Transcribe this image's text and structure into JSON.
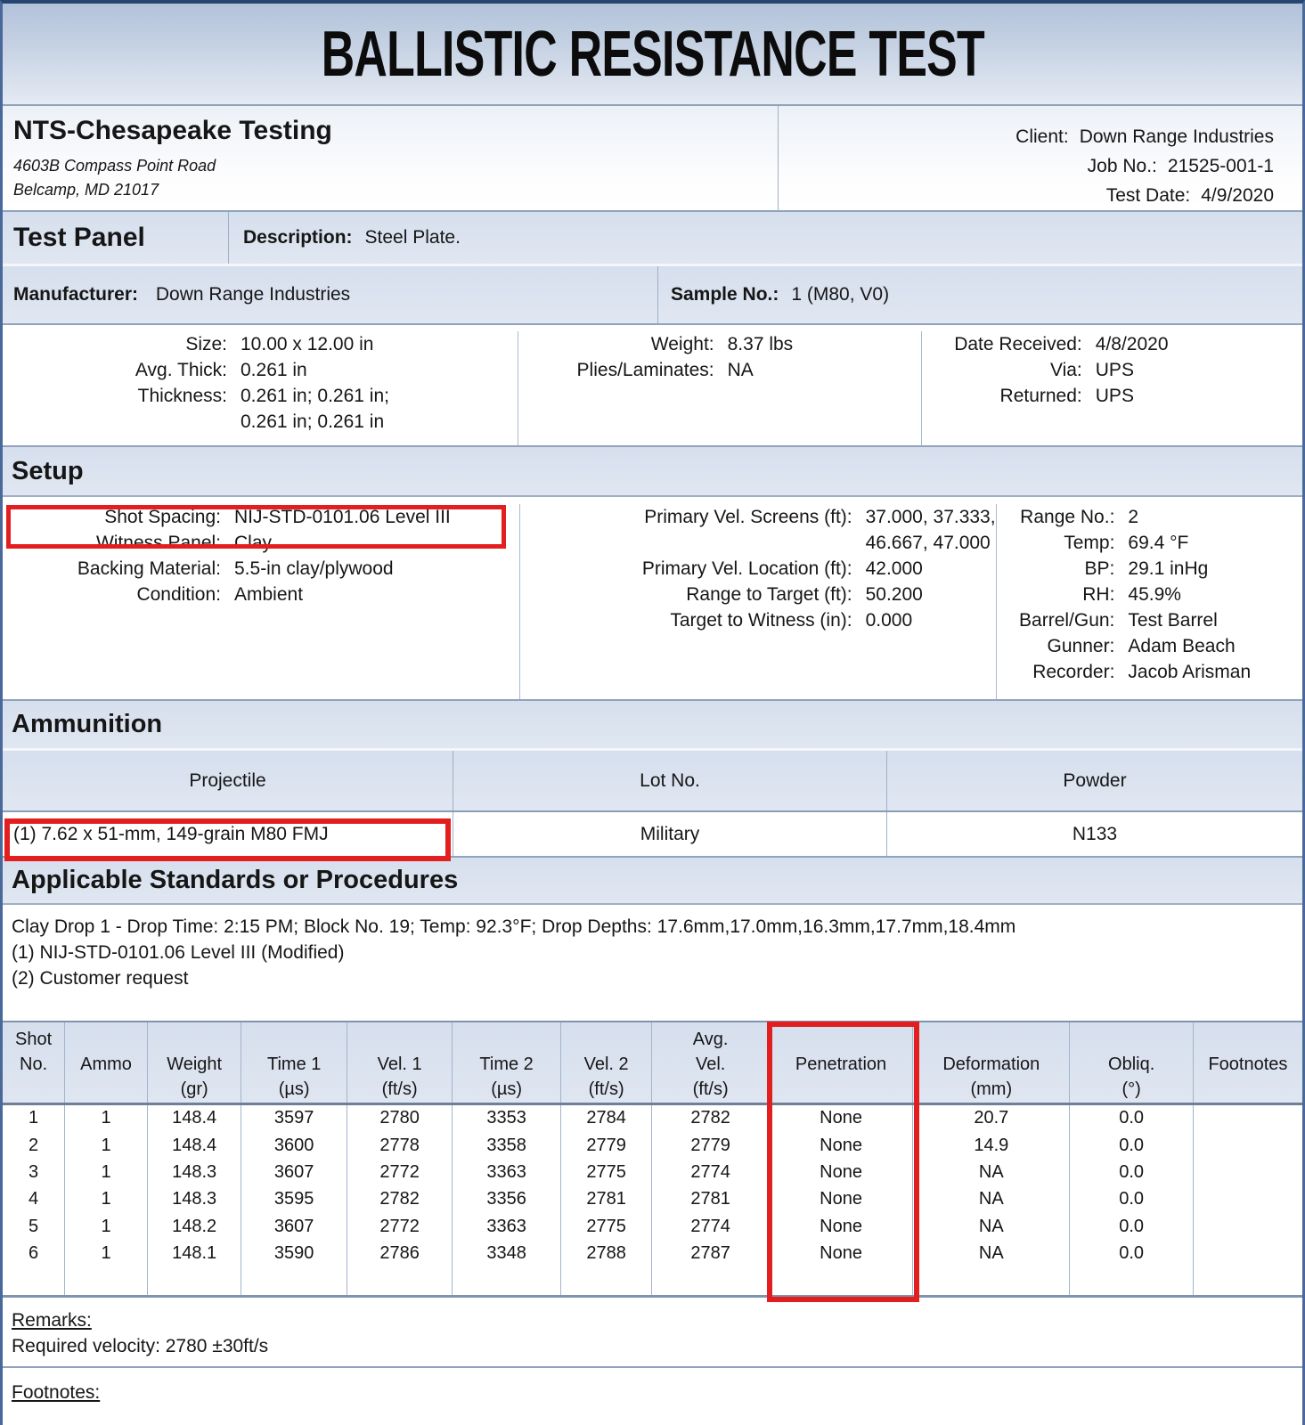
{
  "title": "BALLISTIC RESISTANCE TEST",
  "header": {
    "lab_name": "NTS-Chesapeake Testing",
    "lab_address1": "4603B Compass Point Road",
    "lab_address2": "Belcamp, MD 21017",
    "client_label": "Client:",
    "client": "Down Range Industries",
    "job_label": "Job No.:",
    "job_no": "21525-001-1",
    "test_date_label": "Test Date:",
    "test_date": "4/9/2020"
  },
  "test_panel": {
    "section_title": "Test Panel",
    "description_label": "Description:",
    "description": "Steel Plate.",
    "manufacturer_label": "Manufacturer:",
    "manufacturer": "Down Range Industries",
    "sample_label": "Sample No.:",
    "sample": "1 (M80, V0)",
    "specs_col1": [
      {
        "label": "Size:",
        "value": "10.00 x 12.00 in"
      },
      {
        "label": "Avg. Thick:",
        "value": "0.261 in"
      },
      {
        "label": "Thickness:",
        "value": "0.261 in; 0.261 in;"
      },
      {
        "label": "",
        "value": "0.261 in; 0.261 in"
      }
    ],
    "specs_col2": [
      {
        "label": "Weight:",
        "value": "8.37 lbs"
      },
      {
        "label": "Plies/Laminates:",
        "value": "NA"
      }
    ],
    "specs_col3": [
      {
        "label": "Date Received:",
        "value": "4/8/2020"
      },
      {
        "label": "Via:",
        "value": "UPS"
      },
      {
        "label": "Returned:",
        "value": "UPS"
      }
    ]
  },
  "setup": {
    "section_title": "Setup",
    "col1": [
      {
        "label": "Shot Spacing:",
        "value": "NIJ-STD-0101.06 Level III"
      },
      {
        "label": "Witness Panel:",
        "value": "Clay"
      },
      {
        "label": "Backing Material:",
        "value": "5.5-in clay/plywood"
      },
      {
        "label": "Condition:",
        "value": "Ambient"
      }
    ],
    "col2": [
      {
        "label": "Primary Vel. Screens (ft):",
        "value": "37.000, 37.333,"
      },
      {
        "label": "",
        "value": "46.667, 47.000"
      },
      {
        "label": "Primary Vel. Location (ft):",
        "value": "42.000"
      },
      {
        "label": "Range to Target (ft):",
        "value": "50.200"
      },
      {
        "label": "Target to Witness (in):",
        "value": "0.000"
      }
    ],
    "col3": [
      {
        "label": "Range No.:",
        "value": "2"
      },
      {
        "label": "Temp:",
        "value": "69.4 °F"
      },
      {
        "label": "BP:",
        "value": "29.1 inHg"
      },
      {
        "label": "RH:",
        "value": "45.9%"
      },
      {
        "label": "Barrel/Gun:",
        "value": "Test Barrel"
      },
      {
        "label": "Gunner:",
        "value": "Adam Beach"
      },
      {
        "label": "Recorder:",
        "value": "Jacob Arisman"
      }
    ]
  },
  "ammunition": {
    "section_title": "Ammunition",
    "headers": [
      "Projectile",
      "Lot No.",
      "Powder"
    ],
    "row": [
      "(1)  7.62 x 51-mm, 149-grain M80 FMJ",
      "Military",
      "N133"
    ]
  },
  "standards": {
    "section_title": "Applicable Standards or Procedures",
    "lines": [
      "Clay Drop 1 - Drop Time: 2:15 PM; Block No. 19; Temp: 92.3°F; Drop Depths: 17.6mm,17.0mm,16.3mm,17.7mm,18.4mm",
      "(1)  NIJ-STD-0101.06 Level III (Modified)",
      "(2)  Customer request"
    ]
  },
  "shot_table": {
    "header_lines": [
      [
        "Shot",
        "No.",
        ""
      ],
      [
        "",
        "Ammo",
        ""
      ],
      [
        "",
        "Weight",
        "(gr)"
      ],
      [
        "",
        "Time 1",
        "(µs)"
      ],
      [
        "",
        "Vel. 1",
        "(ft/s)"
      ],
      [
        "",
        "Time 2",
        "(µs)"
      ],
      [
        "",
        "Vel. 2",
        "(ft/s)"
      ],
      [
        "Avg.",
        "Vel.",
        "(ft/s)"
      ],
      [
        "",
        "Penetration",
        ""
      ],
      [
        "",
        "Deformation",
        "(mm)"
      ],
      [
        "",
        "Obliq.",
        "(°)"
      ],
      [
        "",
        "Footnotes",
        ""
      ]
    ],
    "rows": [
      [
        "1",
        "1",
        "148.4",
        "3597",
        "2780",
        "3353",
        "2784",
        "2782",
        "None",
        "20.7",
        "0.0",
        ""
      ],
      [
        "2",
        "1",
        "148.4",
        "3600",
        "2778",
        "3358",
        "2779",
        "2779",
        "None",
        "14.9",
        "0.0",
        ""
      ],
      [
        "3",
        "1",
        "148.3",
        "3607",
        "2772",
        "3363",
        "2775",
        "2774",
        "None",
        "NA",
        "0.0",
        ""
      ],
      [
        "4",
        "1",
        "148.3",
        "3595",
        "2782",
        "3356",
        "2781",
        "2781",
        "None",
        "NA",
        "0.0",
        ""
      ],
      [
        "5",
        "1",
        "148.2",
        "3607",
        "2772",
        "3363",
        "2775",
        "2774",
        "None",
        "NA",
        "0.0",
        ""
      ],
      [
        "6",
        "1",
        "148.1",
        "3590",
        "2786",
        "3348",
        "2788",
        "2787",
        "None",
        "NA",
        "0.0",
        ""
      ]
    ]
  },
  "remarks": {
    "label": "Remarks:",
    "text": "Required velocity: 2780 ±30ft/s"
  },
  "footnotes": {
    "label": "Footnotes:"
  },
  "annotations": {
    "highlight_color": "#e31e1e",
    "items": [
      {
        "name": "shot-spacing-highlight",
        "target_text": "Shot Spacing: NIJ-STD-0101.06 Level III"
      },
      {
        "name": "projectile-highlight",
        "target_text": "(1)  7.62 x 51-mm, 149-grain M80 FMJ"
      },
      {
        "name": "penetration-column-highlight",
        "target_text": "Penetration"
      }
    ]
  }
}
